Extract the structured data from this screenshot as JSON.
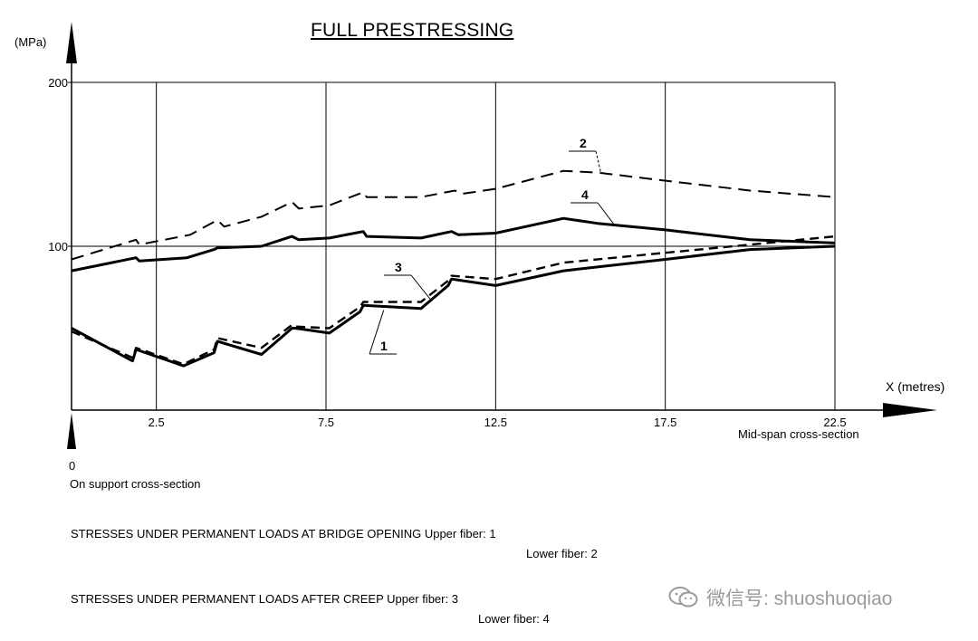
{
  "chart_data": {
    "type": "line",
    "title": "FULL PRESTRESSING",
    "ylabel": "(MPa)",
    "xlabel": "X (metres)",
    "xlim": [
      0,
      22.5
    ],
    "ylim": [
      0,
      200
    ],
    "x_ticks": [
      "2.5",
      "7.5",
      "12.5",
      "17.5",
      "22.5"
    ],
    "y_ticks": [
      "100",
      "200"
    ],
    "x_origin_label": "0",
    "x_start_note": "On support cross-section",
    "x_end_note": "Mid-span cross-section",
    "grid": true,
    "series": [
      {
        "name": "1",
        "style": "solid-thick",
        "x": [
          0,
          1.8,
          1.9,
          3.3,
          4.2,
          4.3,
          5.6,
          6.5,
          6.6,
          7.6,
          8.5,
          8.6,
          10.3,
          11.1,
          11.2,
          12.5,
          14.5,
          17.5,
          20,
          22.5
        ],
        "y": [
          50,
          30,
          37,
          27,
          35,
          42,
          34,
          50,
          50,
          47,
          60,
          64,
          62,
          76,
          80,
          76,
          85,
          92,
          98,
          100
        ]
      },
      {
        "name": "2",
        "style": "dashed",
        "x": [
          0,
          1.9,
          2.0,
          3.5,
          4.3,
          4.5,
          5.6,
          6.5,
          6.7,
          7.6,
          8.6,
          8.7,
          10.3,
          11.3,
          11.5,
          12.5,
          14.5,
          15.5,
          17.5,
          20,
          22.5
        ],
        "y": [
          92,
          104,
          101,
          107,
          116,
          112,
          118,
          127,
          123,
          125,
          133,
          130,
          130,
          134,
          132,
          135,
          146,
          145,
          140,
          134,
          130
        ]
      },
      {
        "name": "3",
        "style": "dashed-thick",
        "x": [
          0,
          1.8,
          1.9,
          3.3,
          4.2,
          4.3,
          5.6,
          6.5,
          6.6,
          7.6,
          8.5,
          8.6,
          10.3,
          11.1,
          11.2,
          12.5,
          14.5,
          17.5,
          20,
          22.5
        ],
        "y": [
          48,
          32,
          38,
          28,
          37,
          44,
          38,
          52,
          51,
          50,
          63,
          66,
          66,
          79,
          82,
          80,
          90,
          96,
          101,
          106
        ]
      },
      {
        "name": "4",
        "style": "solid-thick",
        "x": [
          0,
          1.9,
          2.0,
          3.4,
          4.2,
          4.3,
          5.6,
          6.5,
          6.7,
          7.6,
          8.6,
          8.7,
          10.3,
          11.2,
          11.4,
          12.5,
          14.5,
          15.5,
          17.5,
          20,
          22.5
        ],
        "y": [
          85,
          93,
          91,
          93,
          98,
          99,
          100,
          106,
          104,
          105,
          109,
          106,
          105,
          109,
          107,
          108,
          117,
          114,
          110,
          104,
          102
        ]
      }
    ]
  },
  "legend": {
    "line1_main": "STRESSES UNDER PERMANENT LOADS AT BRIDGE OPENING",
    "line1_upper": "Upper fiber: 1",
    "line1_lower": "Lower fiber: 2",
    "line2_main": "STRESSES UNDER PERMANENT LOADS AFTER CREEP",
    "line2_upper": "Upper fiber: 3",
    "line2_lower": "Lower fiber: 4"
  },
  "watermark": {
    "text": "微信号: shuoshuoqiao",
    "icon": "wechat-icon"
  }
}
